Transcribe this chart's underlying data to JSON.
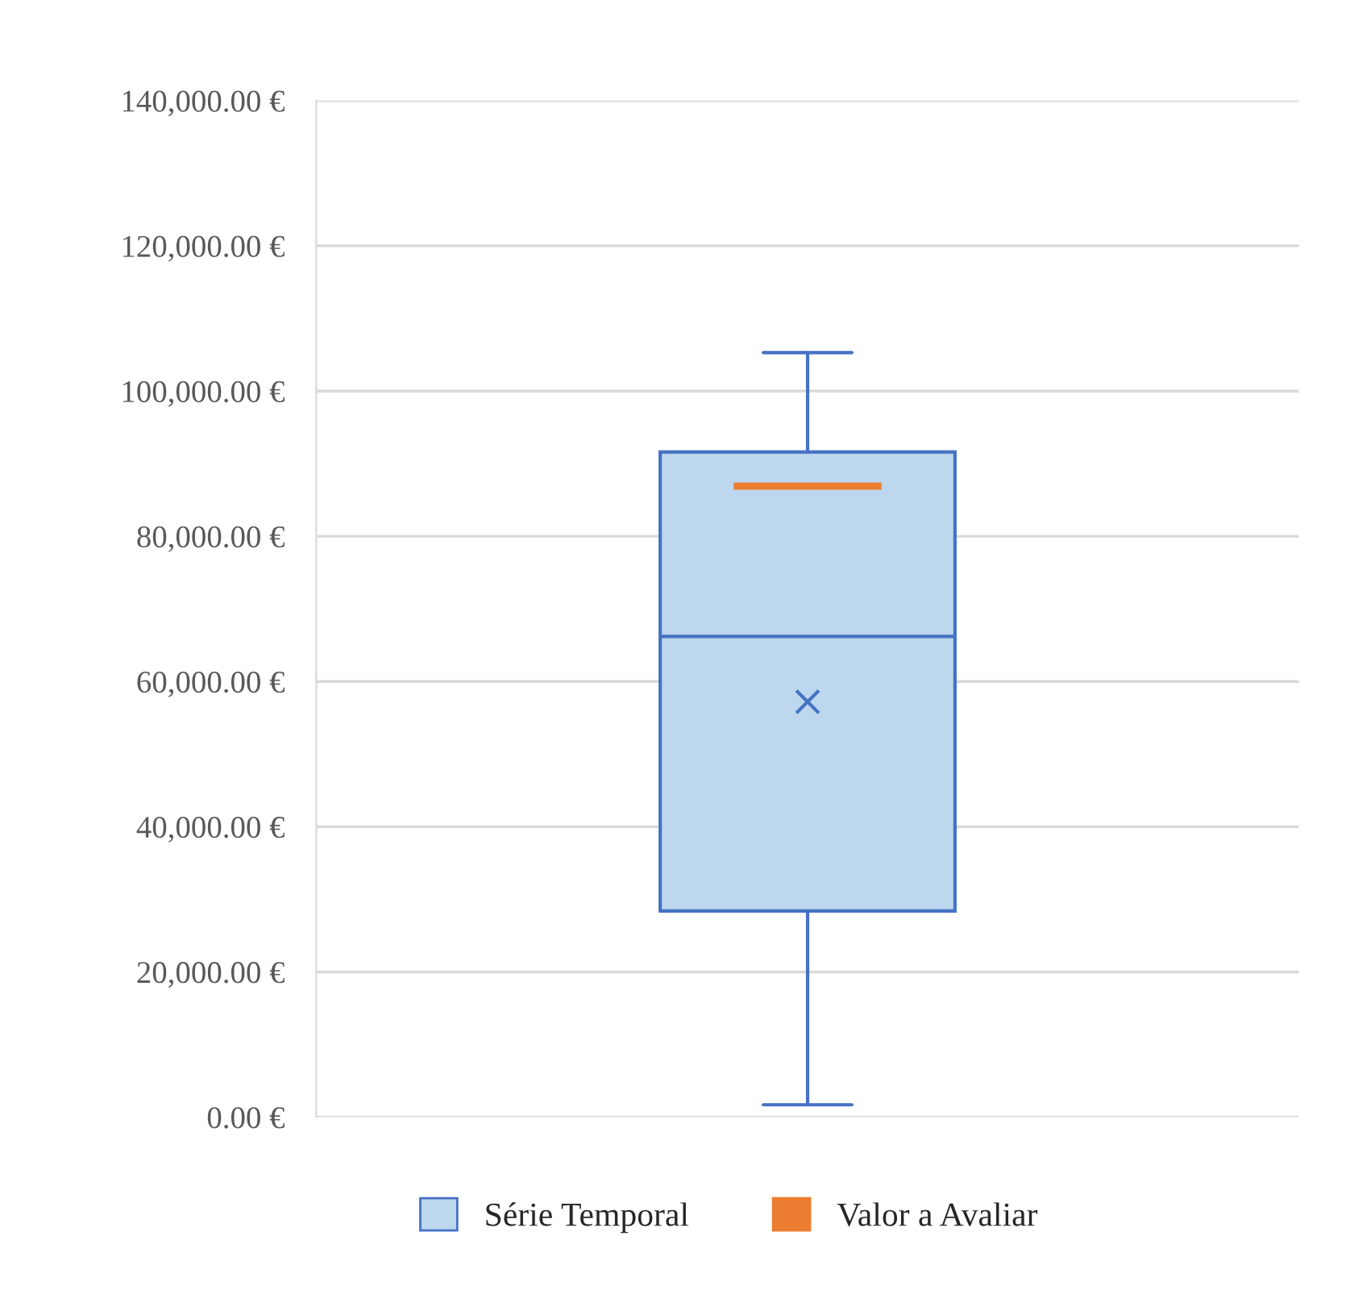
{
  "chart_data": {
    "type": "box",
    "categories": [
      null
    ],
    "series": [
      {
        "name": "Série Temporal",
        "color": "#bdd7ee",
        "boxes": [
          {
            "low": 1700,
            "q1": 28400,
            "median": 66200,
            "q3": 91600,
            "high": 105300,
            "mean": 57200
          }
        ]
      },
      {
        "name": "Valor a Avaliar",
        "color": "#ed7d31",
        "boxes": [
          {
            "low": 86900,
            "q1": 86900,
            "median": 86900,
            "q3": 86900,
            "high": 86900
          }
        ]
      }
    ],
    "ylim": [
      0,
      140000
    ],
    "yticks": [
      {
        "value": 0,
        "label": "0.00 €"
      },
      {
        "value": 20000,
        "label": "20,000.00 €"
      },
      {
        "value": 40000,
        "label": "40,000.00 €"
      },
      {
        "value": 60000,
        "label": "60,000.00 €"
      },
      {
        "value": 80000,
        "label": "80,000.00 €"
      },
      {
        "value": 100000,
        "label": "100,000.00 €"
      },
      {
        "value": 120000,
        "label": "120,000.00 €"
      },
      {
        "value": 140000,
        "label": "140,000.00 €"
      }
    ],
    "grid": "y",
    "legend": "bottom"
  }
}
